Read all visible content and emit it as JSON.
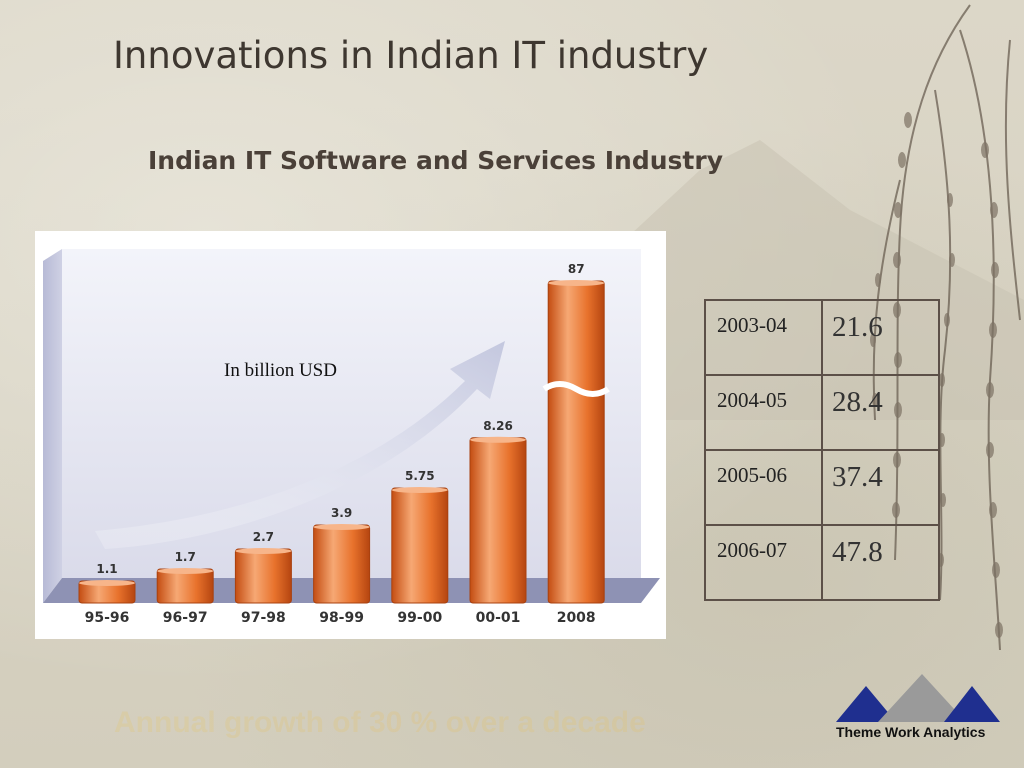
{
  "slide": {
    "title": "Innovations in Indian IT industry",
    "subtitle": "Indian IT Software and Services Industry",
    "tagline": "Annual growth of 30 % over a decade"
  },
  "chart_data": {
    "type": "bar",
    "title": "",
    "xlabel": "",
    "ylabel": "",
    "unit_note": "In billion USD",
    "categories": [
      "95-96",
      "96-97",
      "97-98",
      "98-99",
      "99-00",
      "00-01",
      "2008"
    ],
    "values": [
      1.1,
      1.7,
      2.7,
      3.9,
      5.75,
      8.26,
      87
    ],
    "value_labels": [
      "1.1",
      "1.7",
      "2.7",
      "3.9",
      "5.75",
      "8.26",
      "87"
    ],
    "axis_break_on": "2008",
    "bar_color": "#e8722c",
    "grid": false,
    "legend": false
  },
  "table": {
    "rows": [
      {
        "period": "2003-04",
        "value": "21.6"
      },
      {
        "period": "2004-05",
        "value": "28.4"
      },
      {
        "period": "2005-06",
        "value": "37.4"
      },
      {
        "period": "2006-07",
        "value": "47.8"
      }
    ]
  },
  "logo": {
    "name": "Theme Work Analytics",
    "colors": {
      "blue": "#1f2f8f",
      "gray": "#9a9a9a"
    }
  }
}
